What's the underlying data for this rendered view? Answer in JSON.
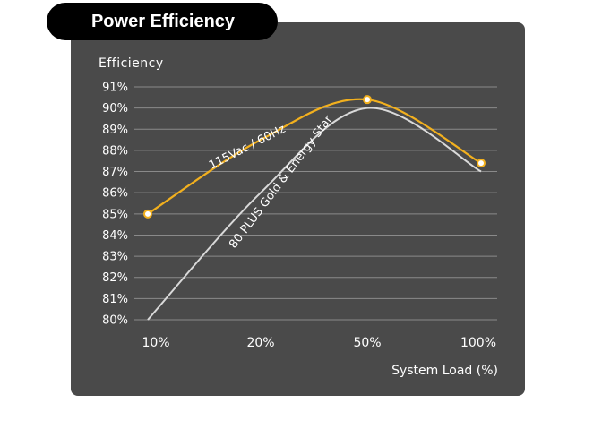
{
  "header": {
    "title": "Power Efficiency"
  },
  "colors": {
    "panel": "#4a4a4a",
    "accent": "#f2b01e",
    "secondary": "#d9d9d9",
    "grid": "#8a8a8a"
  },
  "chart_data": {
    "type": "line",
    "title": "Power Efficiency",
    "ylabel": "Efficiency",
    "xlabel": "System Load (%)",
    "categories": [
      "10%",
      "20%",
      "50%",
      "100%"
    ],
    "yticks": [
      "80%",
      "81%",
      "82%",
      "83%",
      "84%",
      "85%",
      "86%",
      "87%",
      "88%",
      "89%",
      "90%",
      "91%"
    ],
    "ylim": [
      80,
      91
    ],
    "grid": true,
    "series": [
      {
        "name": "115Vac / 60Hz",
        "values": [
          85,
          88.5,
          90.4,
          87.4
        ],
        "markers": true,
        "color": "#f2b01e"
      },
      {
        "name": "80 PLUS Gold & Energy Star",
        "values": [
          80,
          86,
          90,
          87
        ],
        "markers": false,
        "color": "#d9d9d9"
      }
    ]
  }
}
